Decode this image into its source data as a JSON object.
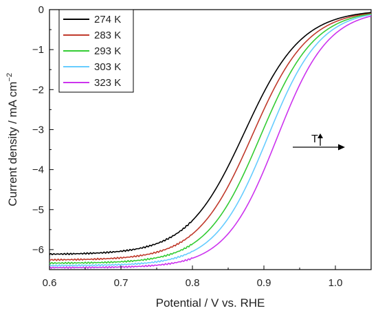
{
  "chart_data": {
    "type": "line",
    "xlabel": "Potential / V vs. RHE",
    "ylabel_main": "Current density / mA cm",
    "ylabel_sup": "−2",
    "xlim": [
      0.6,
      1.05
    ],
    "ylim": [
      -6.5,
      0
    ],
    "xticks": [
      0.6,
      0.7,
      0.8,
      0.9,
      1.0
    ],
    "xtick_labels": [
      "0.6",
      "0.7",
      "0.8",
      "0.9",
      "1.0"
    ],
    "yticks": [
      0,
      -1,
      -2,
      -3,
      -4,
      -5,
      -6
    ],
    "ytick_labels": [
      "0",
      "−1",
      "−2",
      "−3",
      "−4",
      "−5",
      "−6"
    ],
    "grid": false,
    "legend_position": "top-left",
    "annotation": {
      "text": "T",
      "x": 0.96,
      "y": -3.42
    },
    "series": [
      {
        "name": "274 K",
        "color": "#000000",
        "limit": -6.12,
        "half": 0.873,
        "scale": 0.04
      },
      {
        "name": "283 K",
        "color": "#c0392b",
        "limit": -6.26,
        "half": 0.884,
        "scale": 0.039
      },
      {
        "name": "293 K",
        "color": "#33cc33",
        "limit": -6.34,
        "half": 0.895,
        "scale": 0.038
      },
      {
        "name": "303 K",
        "color": "#66ccff",
        "limit": -6.4,
        "half": 0.905,
        "scale": 0.037
      },
      {
        "name": "323 K",
        "color": "#cc33ee",
        "limit": -6.45,
        "half": 0.918,
        "scale": 0.036
      }
    ]
  }
}
